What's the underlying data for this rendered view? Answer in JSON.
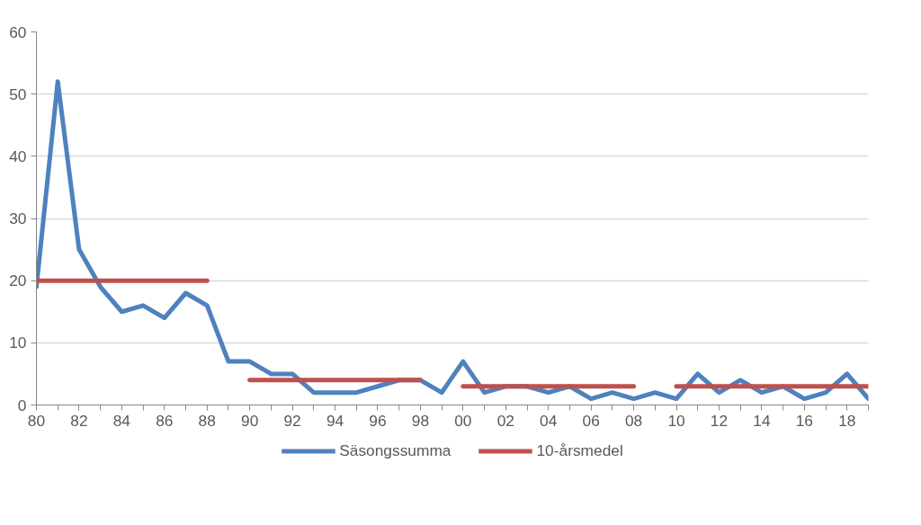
{
  "chart_data": {
    "type": "line",
    "categories": [
      "80",
      null,
      "82",
      null,
      "84",
      null,
      "86",
      null,
      "88",
      null,
      "90",
      null,
      "92",
      null,
      "94",
      null,
      "96",
      null,
      "98",
      null,
      "00",
      null,
      "02",
      null,
      "04",
      null,
      "06",
      null,
      "08",
      null,
      "10",
      null,
      "12",
      null,
      "14",
      null,
      "16",
      null,
      "18",
      null
    ],
    "series": [
      {
        "name": "Säsongssumma",
        "color": "#4f81bd",
        "values": [
          19,
          52,
          25,
          19,
          15,
          16,
          14,
          18,
          16,
          7,
          7,
          5,
          5,
          2,
          2,
          2,
          3,
          4,
          4,
          2,
          7,
          2,
          3,
          3,
          2,
          3,
          1,
          2,
          1,
          2,
          1,
          5,
          2,
          4,
          2,
          3,
          1,
          2,
          5,
          1
        ]
      },
      {
        "name": "10-årsmedel",
        "color": "#c0504d",
        "values": [
          20,
          20,
          20,
          20,
          20,
          20,
          20,
          20,
          20,
          null,
          4,
          4,
          4,
          4,
          4,
          4,
          4,
          4,
          4,
          null,
          3,
          3,
          3,
          3,
          3,
          3,
          3,
          3,
          3,
          null,
          3,
          3,
          3,
          3,
          3,
          3,
          3,
          3,
          3,
          3
        ]
      }
    ],
    "ylim": [
      0,
      60
    ],
    "yticks": [
      0,
      10,
      20,
      30,
      40,
      50,
      60
    ],
    "grid": "y",
    "legend": "bottom",
    "marker": "none",
    "line_style": "solid"
  }
}
